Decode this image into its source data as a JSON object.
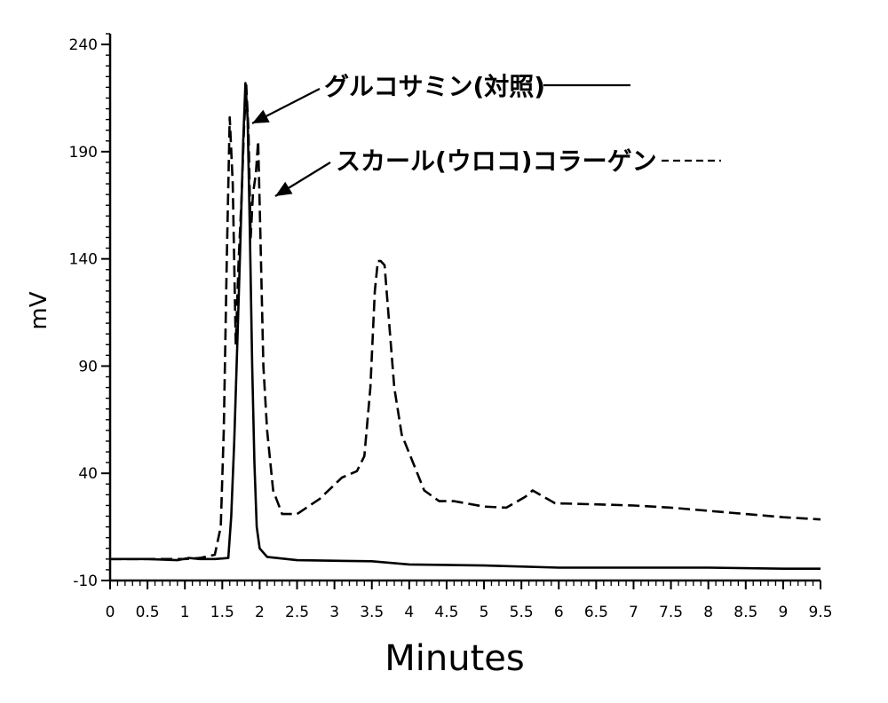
{
  "chart_data": {
    "type": "line",
    "xlabel": "Minutes",
    "ylabel": "mV",
    "xlim": [
      0,
      9.5
    ],
    "ylim": [
      -10,
      245
    ],
    "x_ticks": [
      "0",
      "0.5",
      "1",
      "1.5",
      "2",
      "2.5",
      "3",
      "3.5",
      "4",
      "4.5",
      "5",
      "5.5",
      "6",
      "6.5",
      "7",
      "7.5",
      "8",
      "8.5",
      "9",
      "9.5"
    ],
    "x_tick_values": [
      0,
      0.5,
      1,
      1.5,
      2,
      2.5,
      3,
      3.5,
      4,
      4.5,
      5,
      5.5,
      6,
      6.5,
      7,
      7.5,
      8,
      8.5,
      9,
      9.5
    ],
    "y_ticks": [
      "-10",
      "40",
      "90",
      "140",
      "190",
      "240"
    ],
    "y_tick_values": [
      -10,
      40,
      90,
      140,
      190,
      240
    ],
    "series": [
      {
        "name": "グルコサミン(対照)",
        "style": "solid",
        "points": [
          [
            0,
            0
          ],
          [
            0.5,
            0
          ],
          [
            0.9,
            -0.5
          ],
          [
            1.05,
            0.5
          ],
          [
            1.2,
            0
          ],
          [
            1.4,
            0
          ],
          [
            1.58,
            0.5
          ],
          [
            1.62,
            20
          ],
          [
            1.66,
            55
          ],
          [
            1.7,
            100
          ],
          [
            1.74,
            145
          ],
          [
            1.78,
            195
          ],
          [
            1.81,
            222
          ],
          [
            1.84,
            205
          ],
          [
            1.87,
            150
          ],
          [
            1.9,
            90
          ],
          [
            1.93,
            45
          ],
          [
            1.96,
            15
          ],
          [
            2.0,
            5
          ],
          [
            2.1,
            1
          ],
          [
            2.5,
            -0.5
          ],
          [
            3.5,
            -1
          ],
          [
            4.0,
            -2.5
          ],
          [
            5.0,
            -3
          ],
          [
            6.0,
            -4
          ],
          [
            7.0,
            -4
          ],
          [
            8.0,
            -4
          ],
          [
            9.0,
            -4.5
          ],
          [
            9.5,
            -4.5
          ]
        ]
      },
      {
        "name": "スカール(ウロコ)コラーゲン",
        "style": "dashed",
        "points": [
          [
            0,
            0
          ],
          [
            0.5,
            0
          ],
          [
            1.0,
            0
          ],
          [
            1.2,
            0.5
          ],
          [
            1.4,
            2
          ],
          [
            1.48,
            15
          ],
          [
            1.52,
            60
          ],
          [
            1.56,
            140
          ],
          [
            1.6,
            206
          ],
          [
            1.64,
            175
          ],
          [
            1.68,
            100
          ],
          [
            1.72,
            140
          ],
          [
            1.76,
            170
          ],
          [
            1.79,
            200
          ],
          [
            1.82,
            221
          ],
          [
            1.85,
            200
          ],
          [
            1.88,
            150
          ],
          [
            1.91,
            170
          ],
          [
            1.95,
            180
          ],
          [
            1.98,
            195
          ],
          [
            2.01,
            150
          ],
          [
            2.05,
            90
          ],
          [
            2.1,
            60
          ],
          [
            2.18,
            32
          ],
          [
            2.3,
            21
          ],
          [
            2.5,
            21
          ],
          [
            2.8,
            28
          ],
          [
            3.1,
            38
          ],
          [
            3.3,
            41
          ],
          [
            3.4,
            48
          ],
          [
            3.48,
            80
          ],
          [
            3.54,
            125
          ],
          [
            3.58,
            139
          ],
          [
            3.62,
            139
          ],
          [
            3.67,
            137
          ],
          [
            3.72,
            115
          ],
          [
            3.8,
            80
          ],
          [
            3.9,
            58
          ],
          [
            4.05,
            45
          ],
          [
            4.2,
            32
          ],
          [
            4.4,
            27
          ],
          [
            4.6,
            27
          ],
          [
            5.0,
            24.5
          ],
          [
            5.3,
            24
          ],
          [
            5.55,
            29
          ],
          [
            5.65,
            32
          ],
          [
            5.75,
            30
          ],
          [
            5.95,
            26
          ],
          [
            6.5,
            25.5
          ],
          [
            7.0,
            25
          ],
          [
            7.5,
            24
          ],
          [
            8.0,
            22.5
          ],
          [
            8.5,
            21
          ],
          [
            9.0,
            19.5
          ],
          [
            9.5,
            18.5
          ]
        ]
      }
    ],
    "annotations": [
      {
        "text": "グルコサミン(対照)",
        "series_index": 0
      },
      {
        "text": "スカール(ウロコ)コラーゲン",
        "series_index": 1
      }
    ]
  }
}
